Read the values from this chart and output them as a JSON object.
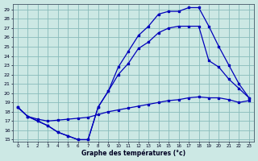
{
  "xlabel": "Graphe des températures (°c)",
  "bg_color": "#cce8e4",
  "grid_color": "#88bbbb",
  "line_color": "#0000bb",
  "xlim": [
    -0.5,
    23.5
  ],
  "ylim": [
    14.8,
    29.6
  ],
  "xticks": [
    0,
    1,
    2,
    3,
    4,
    5,
    6,
    7,
    8,
    9,
    10,
    11,
    12,
    13,
    14,
    15,
    16,
    17,
    18,
    19,
    20,
    21,
    22,
    23
  ],
  "yticks": [
    15,
    16,
    17,
    18,
    19,
    20,
    21,
    22,
    23,
    24,
    25,
    26,
    27,
    28,
    29
  ],
  "curve_top": {
    "x": [
      0,
      1,
      2,
      3,
      4,
      5,
      6,
      7,
      8,
      9,
      10,
      11,
      12,
      13,
      14,
      15,
      16,
      17,
      18,
      19,
      20,
      21,
      22,
      23
    ],
    "y": [
      18.5,
      17.5,
      17.0,
      16.5,
      15.8,
      15.4,
      15.0,
      15.0,
      18.5,
      20.2,
      22.8,
      24.5,
      26.2,
      27.2,
      28.5,
      28.8,
      28.8,
      29.2,
      29.2,
      27.2,
      25.0,
      23.0,
      21.0,
      19.5
    ]
  },
  "curve_mid": {
    "x": [
      0,
      1,
      2,
      3,
      4,
      5,
      6,
      7,
      8,
      9,
      10,
      11,
      12,
      13,
      14,
      15,
      16,
      17,
      18,
      19,
      20,
      21,
      22,
      23
    ],
    "y": [
      18.5,
      17.5,
      17.0,
      16.5,
      15.8,
      15.4,
      15.0,
      15.0,
      18.5,
      20.2,
      22.0,
      23.2,
      24.8,
      25.5,
      26.5,
      27.0,
      27.2,
      27.2,
      27.2,
      23.5,
      22.8,
      21.5,
      20.5,
      19.5
    ]
  },
  "curve_bot": {
    "x": [
      0,
      1,
      2,
      3,
      4,
      5,
      6,
      7,
      8,
      9,
      10,
      11,
      12,
      13,
      14,
      15,
      16,
      17,
      18,
      19,
      20,
      21,
      22,
      23
    ],
    "y": [
      18.5,
      17.5,
      17.2,
      17.0,
      17.1,
      17.2,
      17.3,
      17.4,
      17.7,
      18.0,
      18.2,
      18.4,
      18.6,
      18.8,
      19.0,
      19.2,
      19.3,
      19.5,
      19.6,
      19.5,
      19.5,
      19.3,
      19.0,
      19.2
    ]
  }
}
